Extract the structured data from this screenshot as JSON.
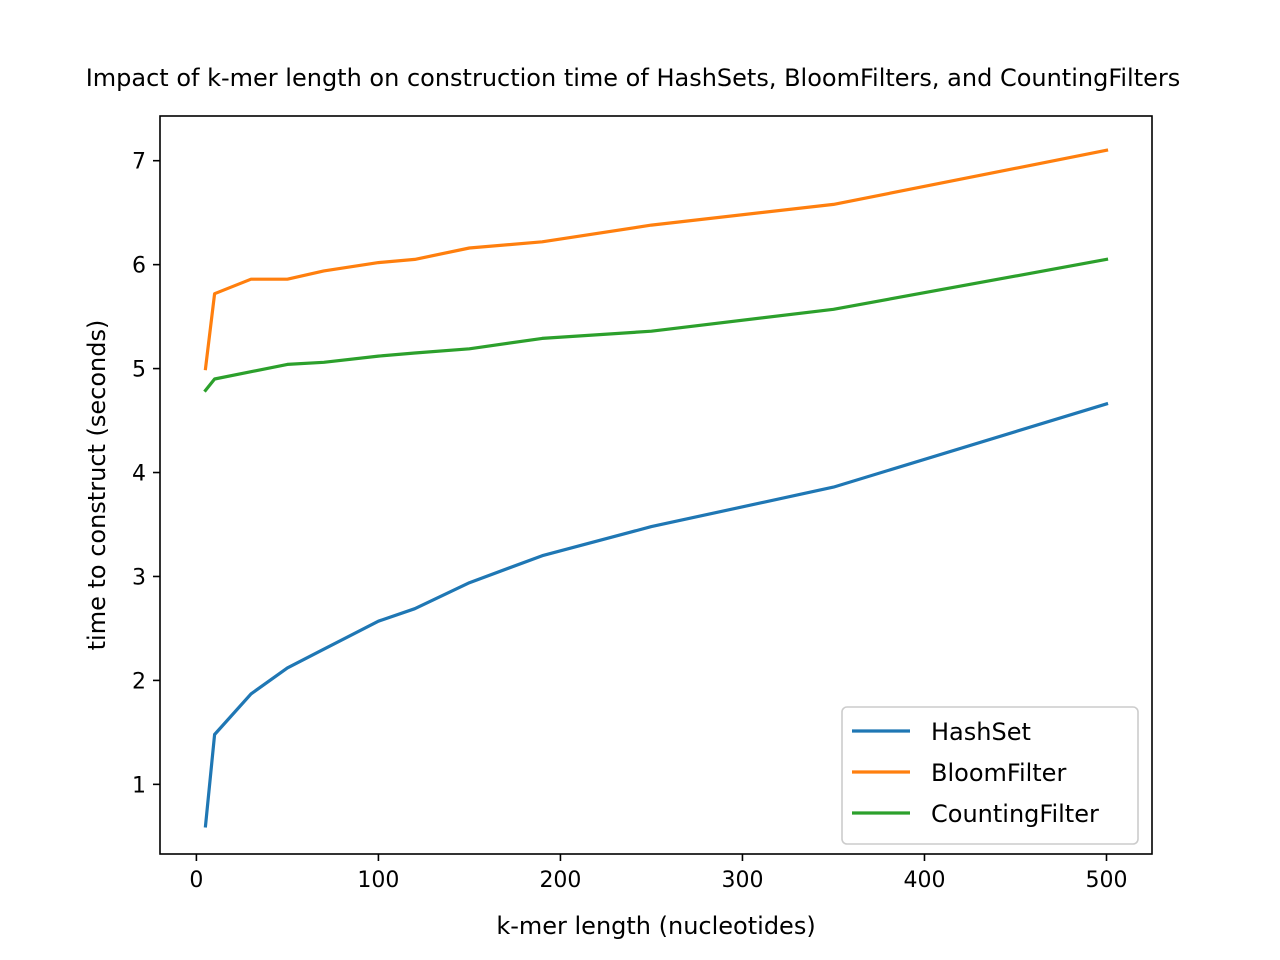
{
  "chart_data": {
    "type": "line",
    "title": "Impact of k-mer length on construction time of HashSets, BloomFilters, and CountingFilters",
    "xlabel": "k-mer length (nucleotides)",
    "ylabel": "time to construct (seconds)",
    "xlim": [
      -20,
      525
    ],
    "ylim": [
      0.33,
      7.43
    ],
    "xticks": [
      0,
      100,
      200,
      300,
      400,
      500
    ],
    "yticks": [
      1,
      2,
      3,
      4,
      5,
      6,
      7
    ],
    "grid": false,
    "legend_position": "lower-right",
    "x": [
      5,
      10,
      30,
      50,
      70,
      100,
      120,
      150,
      190,
      250,
      350,
      500
    ],
    "series": [
      {
        "name": "HashSet",
        "color": "#1f77b4",
        "values": [
          0.6,
          1.48,
          1.87,
          2.12,
          2.3,
          2.57,
          2.69,
          2.94,
          3.2,
          3.48,
          3.86,
          4.66
        ]
      },
      {
        "name": "BloomFilter",
        "color": "#ff7f0e",
        "values": [
          5.0,
          5.72,
          5.86,
          5.86,
          5.94,
          6.02,
          6.05,
          6.16,
          6.22,
          6.38,
          6.58,
          7.1
        ]
      },
      {
        "name": "CountingFilter",
        "color": "#2ca02c",
        "values": [
          4.79,
          4.9,
          4.97,
          5.04,
          5.06,
          5.12,
          5.15,
          5.19,
          5.29,
          5.36,
          5.57,
          6.05
        ]
      }
    ]
  }
}
